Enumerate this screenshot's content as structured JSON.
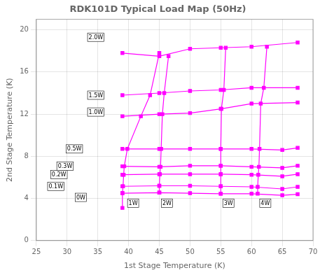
{
  "chart_data": {
    "type": "line",
    "title": "RDK101D Typical Load Map (50Hz)",
    "xlabel": "1st Stage Temperature (K)",
    "ylabel": "2nd Stage Temperature (K)",
    "color": "#FF00FF",
    "marker": "square",
    "grid": true,
    "xlim": [
      25,
      70
    ],
    "xticks": [
      25,
      30,
      35,
      40,
      45,
      50,
      55,
      60,
      65,
      70
    ],
    "ylim": [
      0,
      21
    ],
    "yticks": [
      0,
      4,
      8,
      12,
      16,
      20
    ],
    "series": [
      {
        "x": [
          39,
          45,
          50,
          55,
          60,
          65,
          67.5
        ],
        "values": [
          4.5,
          4.55,
          4.5,
          4.45,
          4.45,
          4.3,
          4.4
        ]
      },
      {
        "x": [
          39,
          45,
          50,
          55,
          60,
          65,
          67.5
        ],
        "values": [
          5.15,
          5.2,
          5.2,
          5.15,
          5.1,
          4.9,
          5.1
        ]
      },
      {
        "x": [
          39,
          45,
          50,
          55,
          60,
          65,
          67.5
        ],
        "values": [
          6.25,
          6.3,
          6.3,
          6.3,
          6.25,
          6.1,
          6.3
        ]
      },
      {
        "x": [
          39,
          45,
          50,
          55,
          60,
          65,
          67.5
        ],
        "values": [
          7.05,
          7.0,
          7.1,
          7.1,
          7.0,
          6.9,
          7.1
        ]
      },
      {
        "x": [
          39,
          45,
          50,
          55,
          60,
          65,
          67.5
        ],
        "values": [
          8.7,
          8.7,
          8.7,
          8.7,
          8.7,
          8.6,
          8.8
        ]
      },
      {
        "x": [
          39,
          45,
          50,
          55,
          60,
          67.5
        ],
        "values": [
          11.8,
          12.0,
          12.1,
          12.5,
          13.0,
          13.1
        ]
      },
      {
        "x": [
          39,
          45,
          50,
          55,
          60,
          67.5
        ],
        "values": [
          13.8,
          14.0,
          14.2,
          14.3,
          14.5,
          14.5
        ]
      },
      {
        "x": [
          39,
          45,
          50,
          55,
          60,
          67.5
        ],
        "values": [
          17.8,
          17.5,
          18.2,
          18.3,
          18.4,
          18.8
        ]
      },
      {
        "x": [
          39.0,
          39.0,
          39.1,
          39.2,
          39.3,
          39.8,
          42.0,
          43.5,
          45.0
        ],
        "values": [
          3.1,
          4.5,
          5.15,
          6.25,
          7.05,
          8.7,
          11.8,
          13.8,
          17.8
        ]
      },
      {
        "x": [
          45.0,
          45.0,
          45.1,
          45.2,
          45.3,
          45.5,
          45.8,
          46.5
        ],
        "values": [
          4.55,
          5.2,
          6.3,
          7.0,
          8.7,
          12.0,
          14.0,
          17.5
        ]
      },
      {
        "x": [
          55.0,
          55.0,
          55.0,
          55.0,
          55.0,
          55.1,
          55.5,
          55.8
        ],
        "values": [
          4.45,
          5.15,
          6.3,
          7.1,
          8.7,
          12.5,
          14.3,
          18.3
        ]
      },
      {
        "x": [
          61.0,
          61.0,
          61.1,
          61.2,
          61.3,
          61.5,
          62.0,
          62.5
        ],
        "values": [
          4.45,
          5.1,
          6.25,
          7.0,
          8.7,
          13.0,
          14.5,
          18.4
        ]
      }
    ],
    "annotations": [
      {
        "text": "0W",
        "x": 31.5,
        "y": 4.1
      },
      {
        "text": "0.1W",
        "x": 27.0,
        "y": 5.15
      },
      {
        "text": "0.2W",
        "x": 27.5,
        "y": 6.25
      },
      {
        "text": "0.3W",
        "x": 28.5,
        "y": 7.05
      },
      {
        "text": "0.5W",
        "x": 30.0,
        "y": 8.7
      },
      {
        "text": "1.0W",
        "x": 33.5,
        "y": 12.2
      },
      {
        "text": "1.5W",
        "x": 33.5,
        "y": 13.8
      },
      {
        "text": "2.0W",
        "x": 33.5,
        "y": 19.3
      },
      {
        "text": "1W",
        "x": 40.0,
        "y": 3.55
      },
      {
        "text": "2W",
        "x": 45.5,
        "y": 3.55
      },
      {
        "text": "3W",
        "x": 55.5,
        "y": 3.55
      },
      {
        "text": "4W",
        "x": 61.5,
        "y": 3.55
      }
    ]
  }
}
